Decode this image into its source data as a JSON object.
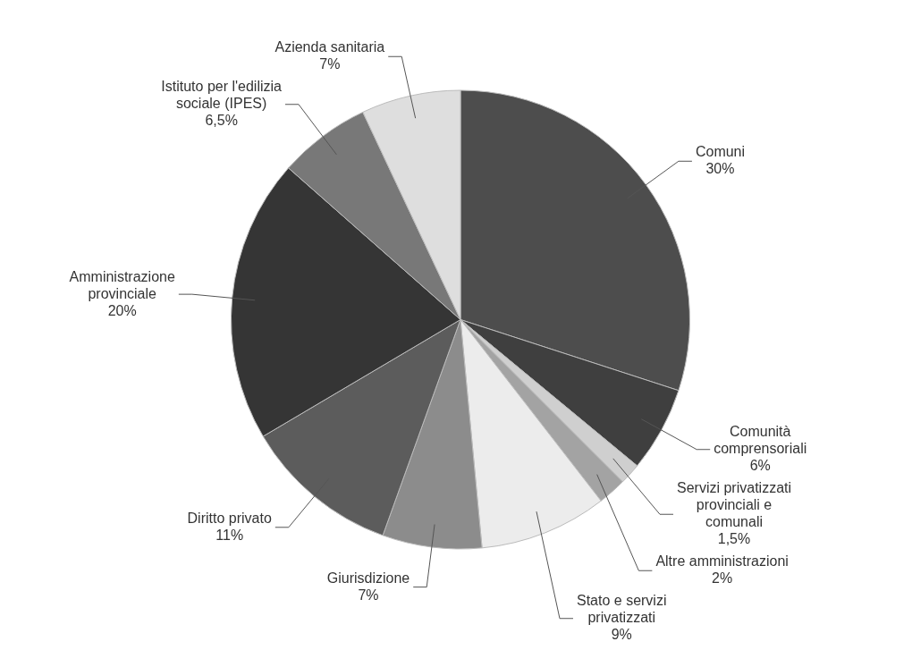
{
  "chart_data": {
    "type": "pie",
    "categories": [
      "Comuni",
      "Comunità comprensoriali",
      "Servizi privatizzati provinciali e comunali",
      "Altre amministrazioni",
      "Stato e servizi privatizzati",
      "Giurisdizione",
      "Diritto privato",
      "Amministrazione provinciale",
      "Istituto per l'edilizia sociale (IPES)",
      "Azienda sanitaria"
    ],
    "values": [
      30,
      6,
      1.5,
      2,
      9,
      7,
      11,
      20,
      6.5,
      7
    ],
    "value_labels": [
      "30%",
      "6%",
      "1,5%",
      "2%",
      "9%",
      "7%",
      "11%",
      "20%",
      "6,5%",
      "7%"
    ],
    "colors": [
      "#4d4d4d",
      "#3f3f3f",
      "#cfcfcf",
      "#a3a3a3",
      "#ececec",
      "#8c8c8c",
      "#5c5c5c",
      "#353535",
      "#787878",
      "#dedede"
    ],
    "legend": false
  }
}
